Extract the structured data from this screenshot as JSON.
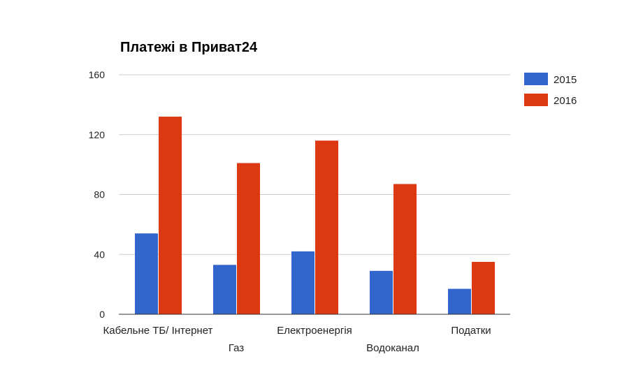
{
  "chart_data": {
    "type": "bar",
    "title": "Платежі в Приват24",
    "categories": [
      "Кабельне ТБ/ Інтернет",
      "Газ",
      "Електроенергія",
      "Водоканал",
      "Податки"
    ],
    "series": [
      {
        "name": "2015",
        "color": "#3366cc",
        "values": [
          54,
          33,
          42,
          29,
          17
        ]
      },
      {
        "name": "2016",
        "color": "#dc3912",
        "values": [
          132,
          101,
          116,
          87,
          35
        ]
      }
    ],
    "xlabel": "",
    "ylabel": "",
    "ylim": [
      0,
      160
    ],
    "yticks": [
      0,
      40,
      80,
      120,
      160
    ],
    "grid": true,
    "legend": "right"
  }
}
